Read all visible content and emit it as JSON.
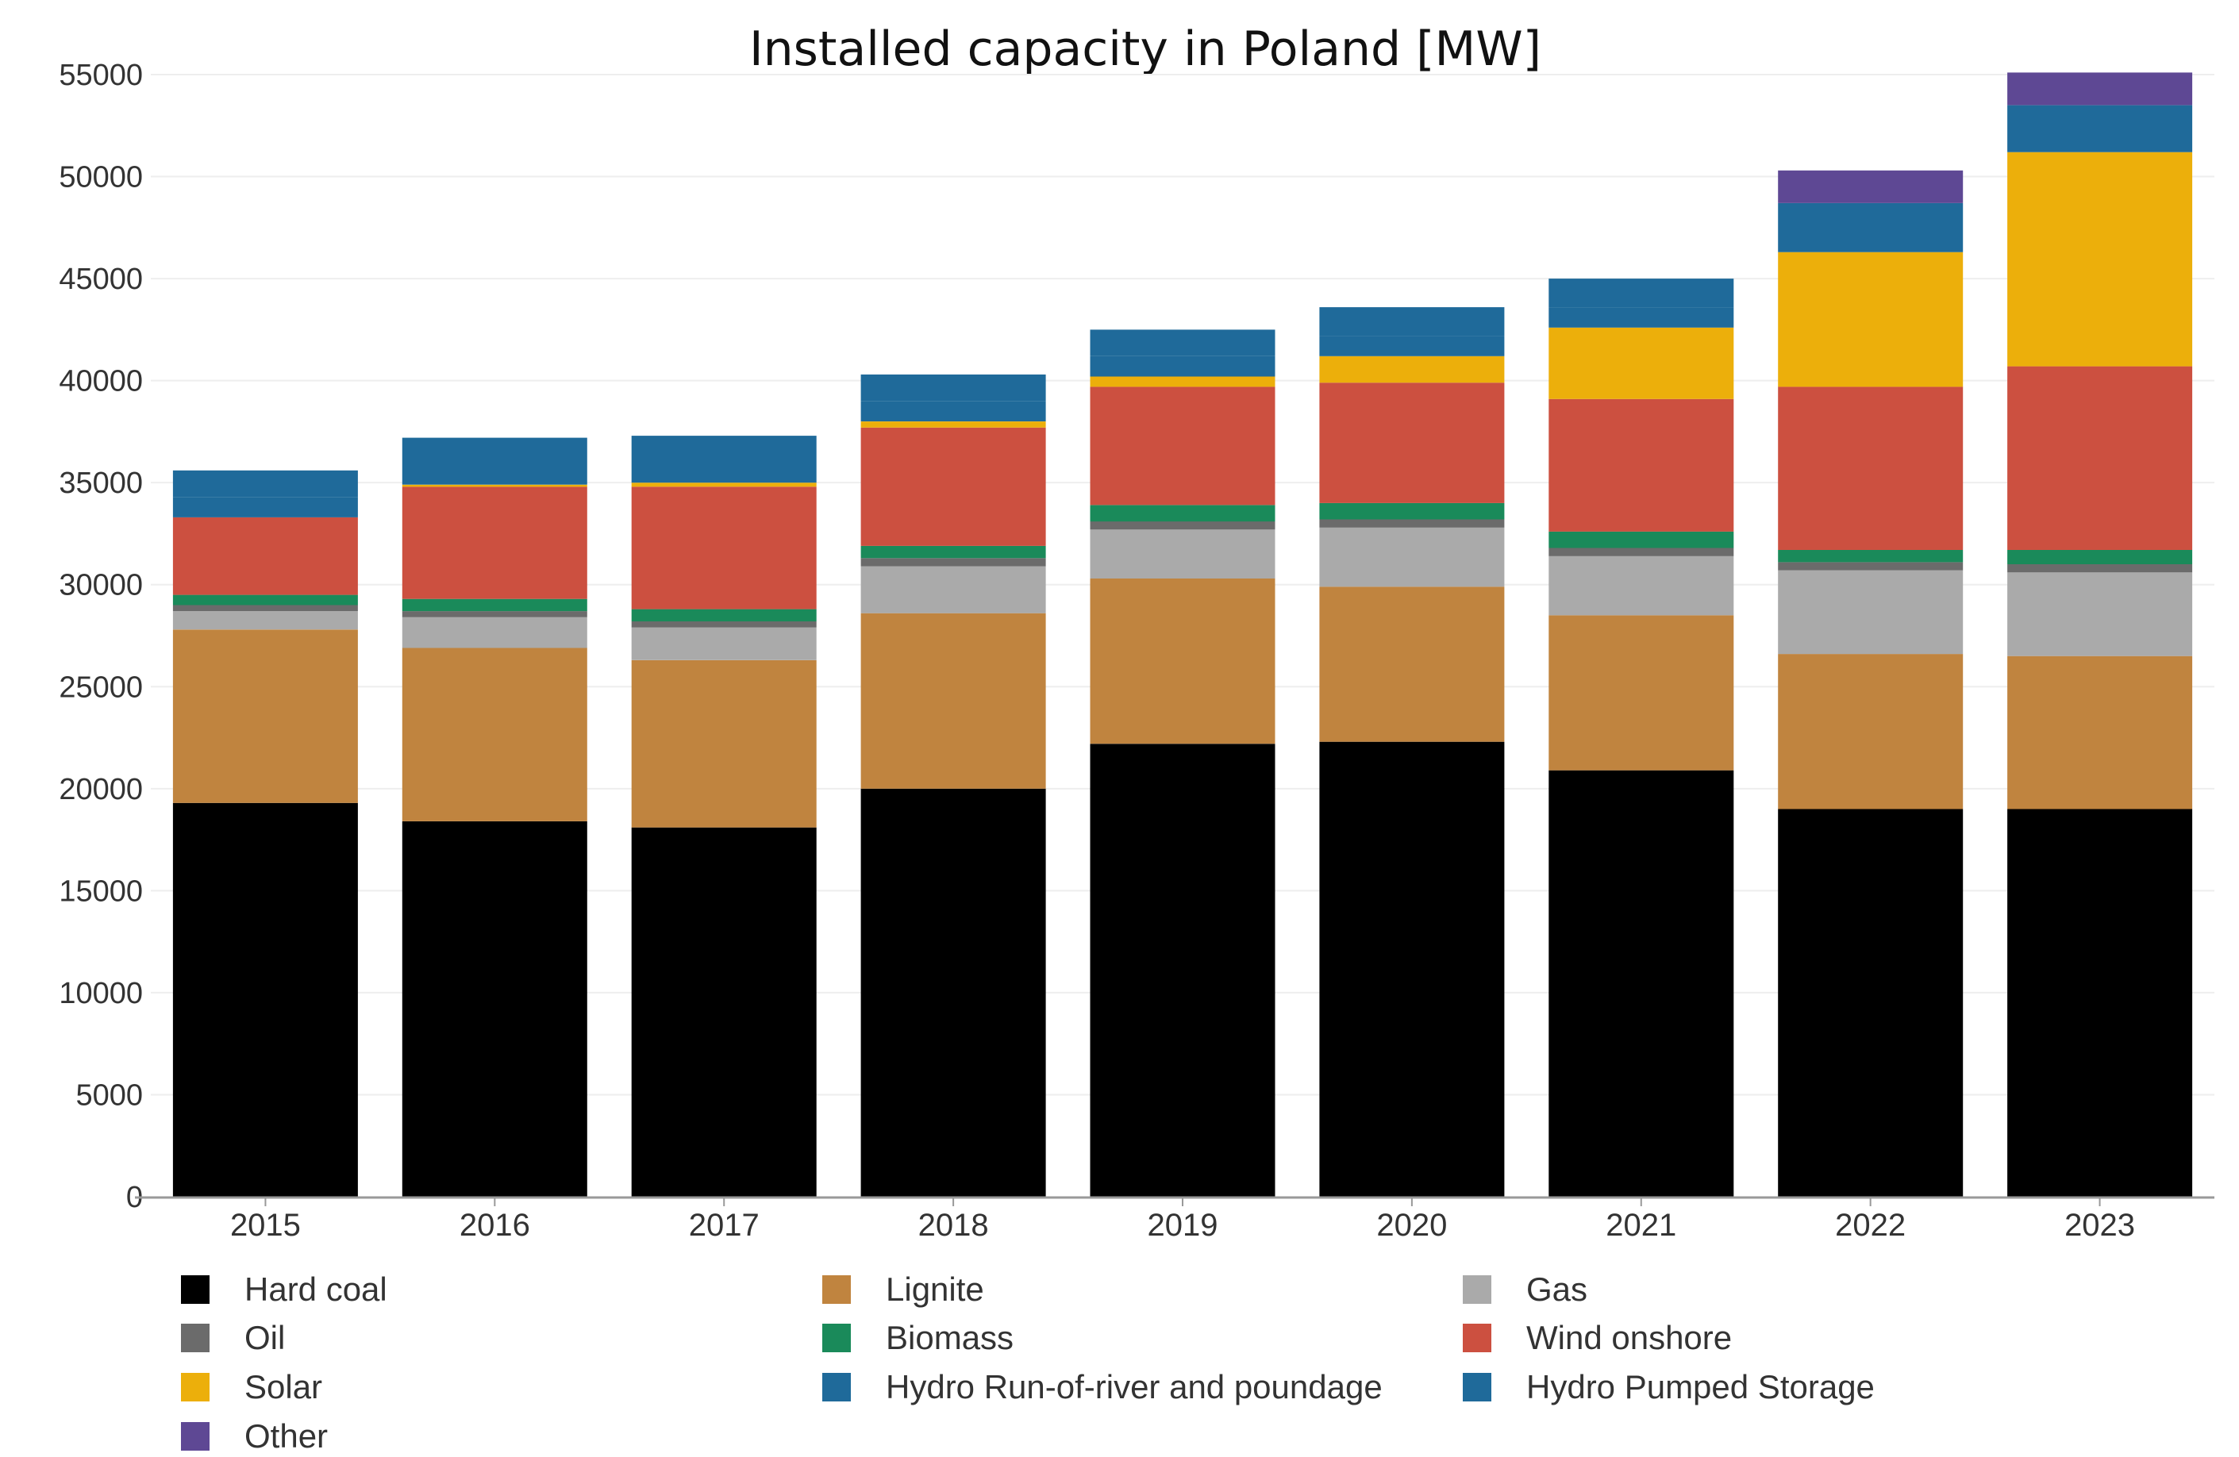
{
  "chart_data": {
    "type": "bar",
    "stacked": true,
    "title": "Installed capacity in Poland [MW]",
    "xlabel": "",
    "ylabel": "",
    "ylim": [
      0,
      55000
    ],
    "yticks": [
      0,
      5000,
      10000,
      15000,
      20000,
      25000,
      30000,
      35000,
      40000,
      45000,
      50000,
      55000
    ],
    "grid": true,
    "legend_position": "bottom",
    "categories": [
      "2015",
      "2016",
      "2017",
      "2018",
      "2019",
      "2020",
      "2021",
      "2022",
      "2023"
    ],
    "series": [
      {
        "name": "Hard coal",
        "color": "#000000",
        "values": [
          19300,
          18400,
          18100,
          20000,
          22200,
          22300,
          20900,
          19000,
          19000
        ]
      },
      {
        "name": "Lignite",
        "color": "#c0843f",
        "values": [
          8500,
          8500,
          8200,
          8600,
          8100,
          7600,
          7600,
          7600,
          7500
        ]
      },
      {
        "name": "Gas",
        "color": "#aaaaaa",
        "values": [
          900,
          1500,
          1600,
          2300,
          2400,
          2900,
          2900,
          4100,
          4100
        ]
      },
      {
        "name": "Oil",
        "color": "#6b6b6b",
        "values": [
          300,
          300,
          300,
          400,
          400,
          400,
          400,
          400,
          400
        ]
      },
      {
        "name": "Biomass",
        "color": "#1a8a5a",
        "values": [
          500,
          600,
          600,
          600,
          800,
          800,
          800,
          600,
          700
        ]
      },
      {
        "name": "Wind onshore",
        "color": "#cc5040",
        "values": [
          3800,
          5500,
          6000,
          5800,
          5800,
          5900,
          6500,
          8000,
          9000
        ]
      },
      {
        "name": "Solar",
        "color": "#ecaf0b",
        "values": [
          0,
          100,
          200,
          300,
          500,
          1300,
          3500,
          6600,
          10500
        ]
      },
      {
        "name": "Hydro Run-of-river and poundage",
        "color": "#1f6a9a",
        "values": [
          1000,
          1000,
          1000,
          1000,
          1000,
          1000,
          1000,
          1000,
          1000
        ]
      },
      {
        "name": "Hydro Pumped Storage",
        "color": "#1f6a9a",
        "values": [
          1300,
          1300,
          1300,
          1300,
          1300,
          1400,
          1400,
          1400,
          1300
        ]
      },
      {
        "name": "Other",
        "color": "#5e4894",
        "values": [
          0,
          0,
          0,
          0,
          0,
          0,
          0,
          1600,
          1600
        ]
      }
    ]
  }
}
